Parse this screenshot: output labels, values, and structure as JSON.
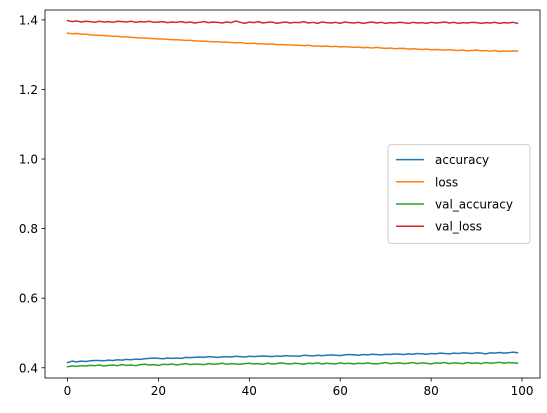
{
  "chart_data": {
    "type": "line",
    "title": "",
    "xlabel": "",
    "ylabel": "",
    "xlim": [
      -4.95,
      103.95
    ],
    "ylim": [
      0.3706,
      1.4284
    ],
    "xticks": [
      0,
      20,
      40,
      60,
      80,
      100
    ],
    "yticks": [
      0.4,
      0.6,
      0.8,
      1.0,
      1.2,
      1.4
    ],
    "ytick_labels": [
      "0.4",
      "0.6",
      "0.8",
      "1.0",
      "1.2",
      "1.4"
    ],
    "grid": false,
    "legend_position": "center-right",
    "x": [
      0,
      1,
      2,
      3,
      4,
      5,
      6,
      7,
      8,
      9,
      10,
      11,
      12,
      13,
      14,
      15,
      16,
      17,
      18,
      19,
      20,
      21,
      22,
      23,
      24,
      25,
      26,
      27,
      28,
      29,
      30,
      31,
      32,
      33,
      34,
      35,
      36,
      37,
      38,
      39,
      40,
      41,
      42,
      43,
      44,
      45,
      46,
      47,
      48,
      49,
      50,
      51,
      52,
      53,
      54,
      55,
      56,
      57,
      58,
      59,
      60,
      61,
      62,
      63,
      64,
      65,
      66,
      67,
      68,
      69,
      70,
      71,
      72,
      73,
      74,
      75,
      76,
      77,
      78,
      79,
      80,
      81,
      82,
      83,
      84,
      85,
      86,
      87,
      88,
      89,
      90,
      91,
      92,
      93,
      94,
      95,
      96,
      97,
      98,
      99
    ],
    "series": [
      {
        "name": "accuracy",
        "color": "#1f77b4",
        "values": [
          0.415,
          0.419,
          0.417,
          0.419,
          0.418,
          0.42,
          0.421,
          0.421,
          0.42,
          0.422,
          0.421,
          0.423,
          0.422,
          0.424,
          0.423,
          0.425,
          0.424,
          0.426,
          0.427,
          0.428,
          0.427,
          0.426,
          0.428,
          0.427,
          0.428,
          0.427,
          0.43,
          0.429,
          0.43,
          0.431,
          0.43,
          0.432,
          0.431,
          0.43,
          0.431,
          0.432,
          0.431,
          0.433,
          0.432,
          0.431,
          0.433,
          0.432,
          0.433,
          0.434,
          0.433,
          0.432,
          0.434,
          0.433,
          0.435,
          0.434,
          0.434,
          0.433,
          0.436,
          0.435,
          0.434,
          0.436,
          0.435,
          0.436,
          0.437,
          0.436,
          0.435,
          0.437,
          0.438,
          0.437,
          0.436,
          0.438,
          0.437,
          0.439,
          0.438,
          0.437,
          0.439,
          0.438,
          0.44,
          0.439,
          0.438,
          0.44,
          0.439,
          0.441,
          0.44,
          0.439,
          0.441,
          0.44,
          0.442,
          0.441,
          0.44,
          0.442,
          0.441,
          0.443,
          0.442,
          0.441,
          0.443,
          0.442,
          0.44,
          0.443,
          0.442,
          0.444,
          0.442,
          0.443,
          0.445,
          0.443
        ]
      },
      {
        "name": "loss",
        "color": "#ff7f0e",
        "values": [
          1.362,
          1.36,
          1.361,
          1.359,
          1.359,
          1.357,
          1.356,
          1.356,
          1.355,
          1.354,
          1.353,
          1.353,
          1.351,
          1.351,
          1.35,
          1.349,
          1.348,
          1.348,
          1.347,
          1.346,
          1.345,
          1.345,
          1.344,
          1.343,
          1.343,
          1.342,
          1.341,
          1.341,
          1.34,
          1.339,
          1.339,
          1.338,
          1.337,
          1.337,
          1.336,
          1.336,
          1.335,
          1.334,
          1.335,
          1.333,
          1.332,
          1.333,
          1.331,
          1.331,
          1.33,
          1.331,
          1.329,
          1.329,
          1.328,
          1.328,
          1.327,
          1.327,
          1.326,
          1.327,
          1.325,
          1.325,
          1.324,
          1.325,
          1.323,
          1.324,
          1.322,
          1.323,
          1.322,
          1.321,
          1.322,
          1.32,
          1.321,
          1.319,
          1.321,
          1.319,
          1.318,
          1.319,
          1.317,
          1.318,
          1.318,
          1.316,
          1.317,
          1.316,
          1.315,
          1.316,
          1.314,
          1.315,
          1.314,
          1.313,
          1.314,
          1.313,
          1.312,
          1.313,
          1.311,
          1.312,
          1.313,
          1.311,
          1.312,
          1.31,
          1.312,
          1.309,
          1.311,
          1.31,
          1.311,
          1.31
        ]
      },
      {
        "name": "val_accuracy",
        "color": "#2ca02c",
        "values": [
          0.403,
          0.405,
          0.404,
          0.406,
          0.405,
          0.407,
          0.406,
          0.408,
          0.405,
          0.407,
          0.408,
          0.406,
          0.409,
          0.407,
          0.408,
          0.406,
          0.409,
          0.41,
          0.408,
          0.409,
          0.407,
          0.41,
          0.409,
          0.411,
          0.408,
          0.41,
          0.412,
          0.409,
          0.411,
          0.41,
          0.409,
          0.412,
          0.41,
          0.411,
          0.413,
          0.41,
          0.412,
          0.411,
          0.41,
          0.412,
          0.413,
          0.411,
          0.412,
          0.41,
          0.413,
          0.411,
          0.412,
          0.414,
          0.412,
          0.411,
          0.413,
          0.412,
          0.41,
          0.413,
          0.412,
          0.414,
          0.411,
          0.413,
          0.412,
          0.411,
          0.414,
          0.412,
          0.413,
          0.411,
          0.413,
          0.412,
          0.414,
          0.412,
          0.411,
          0.413,
          0.415,
          0.412,
          0.413,
          0.414,
          0.412,
          0.413,
          0.415,
          0.412,
          0.414,
          0.413,
          0.411,
          0.414,
          0.413,
          0.415,
          0.412,
          0.414,
          0.413,
          0.412,
          0.415,
          0.413,
          0.414,
          0.412,
          0.415,
          0.413,
          0.414,
          0.416,
          0.413,
          0.415,
          0.414,
          0.413
        ]
      },
      {
        "name": "val_loss",
        "color": "#d62728",
        "values": [
          1.398,
          1.395,
          1.397,
          1.394,
          1.396,
          1.395,
          1.393,
          1.396,
          1.394,
          1.395,
          1.393,
          1.396,
          1.395,
          1.394,
          1.396,
          1.393,
          1.395,
          1.394,
          1.396,
          1.393,
          1.394,
          1.395,
          1.392,
          1.394,
          1.393,
          1.395,
          1.392,
          1.394,
          1.391,
          1.393,
          1.395,
          1.392,
          1.394,
          1.393,
          1.391,
          1.394,
          1.392,
          1.397,
          1.393,
          1.39,
          1.394,
          1.392,
          1.395,
          1.391,
          1.393,
          1.394,
          1.39,
          1.392,
          1.394,
          1.391,
          1.393,
          1.392,
          1.395,
          1.391,
          1.393,
          1.39,
          1.394,
          1.392,
          1.391,
          1.393,
          1.39,
          1.394,
          1.392,
          1.391,
          1.393,
          1.39,
          1.392,
          1.394,
          1.391,
          1.393,
          1.39,
          1.392,
          1.391,
          1.393,
          1.392,
          1.39,
          1.393,
          1.391,
          1.392,
          1.39,
          1.393,
          1.391,
          1.392,
          1.394,
          1.391,
          1.393,
          1.39,
          1.392,
          1.391,
          1.393,
          1.392,
          1.39,
          1.392,
          1.391,
          1.393,
          1.39,
          1.392,
          1.391,
          1.393,
          1.39
        ]
      }
    ]
  }
}
